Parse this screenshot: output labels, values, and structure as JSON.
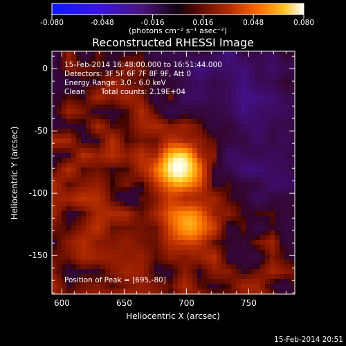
{
  "chart_data": {
    "type": "heatmap",
    "title": "Reconstructed RHESSI Image",
    "xlabel": "Heliocentric X (arcsec)",
    "ylabel": "Heliocentric Y (arcsec)",
    "xlim": [
      592,
      787
    ],
    "ylim": [
      -181,
      14
    ],
    "x_ticks": [
      600,
      650,
      700,
      750
    ],
    "y_ticks": [
      0,
      -50,
      -100,
      -150
    ],
    "x_minor_step": 10,
    "y_minor_step": 10,
    "colorbar": {
      "range": [
        -0.08,
        0.08
      ],
      "tick_values": [
        -0.08,
        -0.048,
        -0.016,
        0.016,
        0.048,
        0.08
      ],
      "tick_labels": [
        "-0.080",
        "-0.048",
        "-0.016",
        "0.016",
        "0.048",
        "0.080"
      ],
      "units_label": "(photons cm⁻² s⁻¹ asec⁻²)"
    },
    "annotations": {
      "time_range": "15-Feb-2014 16:48:00.000 to 16:51:44.000",
      "detectors": "Detectors: 3F 5F 6F 7F 8F 9F, Att 0",
      "energy": "Energy Range: 3.0 - 6.0 keV",
      "method": "Clean",
      "counts": "Total counts: 2.19E+04",
      "peak": "Position of Peak = [695,-80]"
    },
    "sources": [
      {
        "x": 695,
        "y": -80,
        "peak": 0.08
      },
      {
        "x": 703,
        "y": -126,
        "peak": 0.045
      }
    ],
    "colors": {
      "negative": [
        "#200070",
        "#3020ff"
      ],
      "positive": [
        "#300000",
        "#a02000",
        "#ff6000",
        "#ffd000",
        "#ffffff"
      ]
    }
  },
  "footer": {
    "timestamp": "15-Feb-2014 20:51"
  }
}
